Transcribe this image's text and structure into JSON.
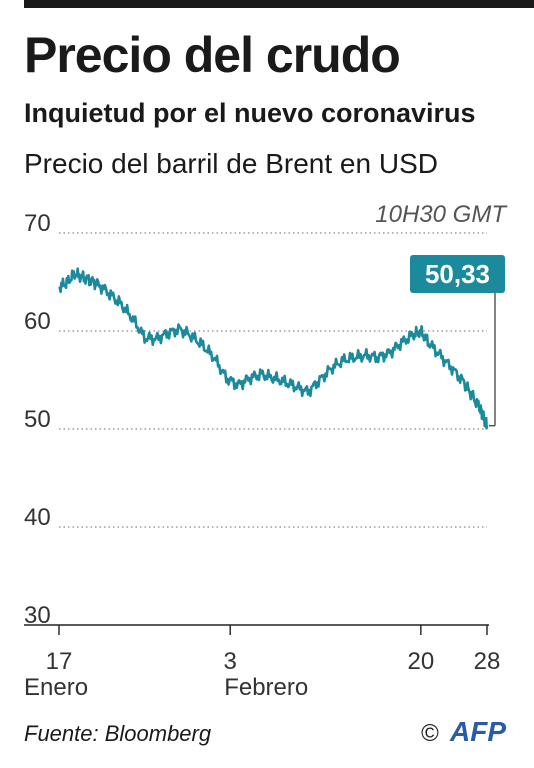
{
  "header": {
    "title": "Precio del crudo",
    "subtitle": "Inquietud por el nuevo coronavirus",
    "description": "Precio del barril de Brent en USD",
    "timestamp": "10H30 GMT"
  },
  "colors": {
    "line": "#1b8a9c",
    "callout_bg": "#1b8a9c",
    "grid": "#8a8a8a",
    "text": "#1a1a1a"
  },
  "chart_data": {
    "type": "line",
    "ylim": [
      30,
      70
    ],
    "y_ticks": [
      30,
      40,
      50,
      60,
      70
    ],
    "y_tick_labels": [
      "30",
      "40",
      "50",
      "60",
      "70"
    ],
    "grid": true,
    "grid_style": "dotted",
    "x_domain": [
      17,
      28
    ],
    "x_ticks": [
      {
        "day": 17,
        "label": "17",
        "sublabel": "Enero"
      },
      {
        "day": 21.4,
        "label": "3",
        "sublabel": "Febrero"
      },
      {
        "day": 26.3,
        "label": "20",
        "sublabel": ""
      },
      {
        "day": 28,
        "label": "28",
        "sublabel": ""
      }
    ],
    "series": [
      {
        "x": [
          17.0,
          17.2,
          17.4,
          17.6,
          17.8,
          18.0,
          18.3,
          18.6,
          18.9,
          19.2,
          19.5,
          19.8,
          20.1,
          20.4,
          20.7,
          21.0,
          21.3,
          21.6,
          21.9,
          22.2,
          22.5,
          22.8,
          23.1,
          23.4,
          23.7,
          24.0,
          24.3,
          24.6,
          24.9,
          25.2,
          25.5,
          25.8,
          26.1,
          26.3,
          26.5,
          26.8,
          27.1,
          27.4,
          27.6,
          27.8,
          27.9,
          28.0
        ],
        "values": [
          64.5,
          64.9,
          65.8,
          65.5,
          65.2,
          64.8,
          63.8,
          62.7,
          61.2,
          59.3,
          59.2,
          59.8,
          60.2,
          59.5,
          58.5,
          57.2,
          55.2,
          54.5,
          55.2,
          55.6,
          55.2,
          54.8,
          54.3,
          53.8,
          55.0,
          56.2,
          57.0,
          57.3,
          57.5,
          57.3,
          57.8,
          58.8,
          59.6,
          59.9,
          58.8,
          57.5,
          56.2,
          54.8,
          53.5,
          52.2,
          51.2,
          50.33
        ]
      }
    ],
    "last_value_label": "50,33"
  },
  "footer": {
    "source": "Fuente: Bloomberg",
    "copyright": "©",
    "agency": "AFP"
  }
}
